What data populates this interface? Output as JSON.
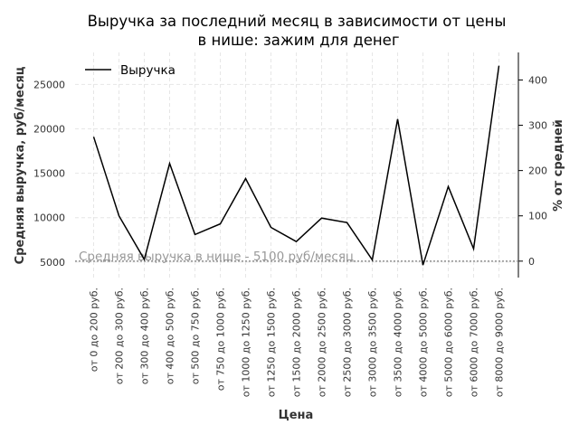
{
  "chart_data": {
    "type": "line",
    "title": "Выручка за последний месяц в зависимости от цены\nв нише: зажим для денег",
    "xlabel": "Цена",
    "ylabel": "Средняя выручка, руб/месяц",
    "ylabel_right": "% от средней",
    "categories": [
      "от 0 до 200 руб.",
      "от 200 до 300 руб.",
      "от 300 до 400 руб.",
      "от 400 до 500 руб.",
      "от 500 до 750 руб.",
      "от 750 до 1000 руб.",
      "от 1000 до 1250 руб.",
      "от 1250 до 1500 руб.",
      "от 1500 до 2000 руб.",
      "от 2000 до 2500 руб.",
      "от 2500 до 3000 руб.",
      "от 3000 до 3500 руб.",
      "от 3500 до 4000 руб.",
      "от 4000 до 5000 руб.",
      "от 5000 до 6000 руб.",
      "от 6000 до 7000 руб.",
      "от 8000 до 9000 руб."
    ],
    "series": [
      {
        "name": "Выручка",
        "color": "#000000",
        "values": [
          19100,
          10200,
          5300,
          16100,
          8100,
          9300,
          14400,
          8900,
          7300,
          9950,
          9450,
          5250,
          21100,
          4650,
          13500,
          6500,
          27100
        ]
      }
    ],
    "ylim": [
      3250,
      28600
    ],
    "yticks": [
      5000,
      10000,
      15000,
      20000,
      25000
    ],
    "ylim_right": [
      -36.3,
      460.8
    ],
    "yticks_right": [
      0,
      100,
      200,
      300,
      400
    ],
    "reference_line": {
      "value": 5100,
      "label": "Средняя выручка в нише - 5100 руб/месяц",
      "color": "#999999"
    },
    "grid": true,
    "legend_position": "top-left"
  }
}
